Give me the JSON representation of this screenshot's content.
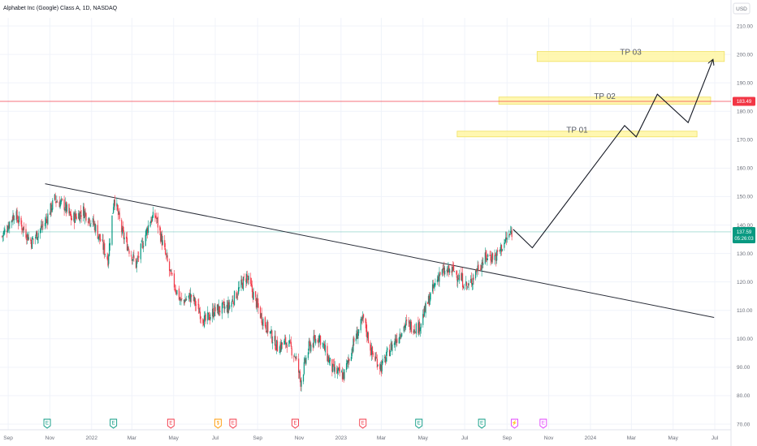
{
  "chart_data": {
    "type": "candlestick",
    "title": "Alphabet Inc (Google) Class A, 1D, NASDAQ",
    "currency": "USD",
    "ylim": [
      70,
      210
    ],
    "y_ticks": [
      "210.00",
      "200.00",
      "190.00",
      "180.00",
      "170.00",
      "160.00",
      "150.00",
      "140.00",
      "130.00",
      "120.00",
      "110.00",
      "100.00",
      "90.00",
      "80.00",
      "70.00"
    ],
    "x_range": [
      "2021-08-20",
      "2024-07-20"
    ],
    "x_ticks": [
      {
        "date": "2021-09-01",
        "label": "Sep"
      },
      {
        "date": "2021-11-01",
        "label": "Nov"
      },
      {
        "date": "2022-01-01",
        "label": "2022"
      },
      {
        "date": "2022-03-01",
        "label": "Mar"
      },
      {
        "date": "2022-05-01",
        "label": "May"
      },
      {
        "date": "2022-07-01",
        "label": "Jul"
      },
      {
        "date": "2022-09-01",
        "label": "Sep"
      },
      {
        "date": "2022-11-01",
        "label": "Nov"
      },
      {
        "date": "2023-01-01",
        "label": "2023"
      },
      {
        "date": "2023-03-01",
        "label": "Mar"
      },
      {
        "date": "2023-05-01",
        "label": "May"
      },
      {
        "date": "2023-07-01",
        "label": "Jul"
      },
      {
        "date": "2023-09-01",
        "label": "Sep"
      },
      {
        "date": "2023-11-01",
        "label": "Nov"
      },
      {
        "date": "2024-01-01",
        "label": "2024"
      },
      {
        "date": "2024-03-01",
        "label": "Mar"
      },
      {
        "date": "2024-05-01",
        "label": "May"
      },
      {
        "date": "2024-07-01",
        "label": "Jul"
      }
    ],
    "price_path": [
      [
        "2021-08-23",
        136
      ],
      [
        "2021-09-10",
        144
      ],
      [
        "2021-09-25",
        138
      ],
      [
        "2021-10-05",
        134
      ],
      [
        "2021-10-25",
        141
      ],
      [
        "2021-11-08",
        149
      ],
      [
        "2021-11-22",
        147
      ],
      [
        "2021-12-03",
        142
      ],
      [
        "2021-12-20",
        145
      ],
      [
        "2022-01-05",
        140
      ],
      [
        "2022-01-25",
        128
      ],
      [
        "2022-02-03",
        150
      ],
      [
        "2022-02-15",
        137
      ],
      [
        "2022-03-07",
        126
      ],
      [
        "2022-03-28",
        142
      ],
      [
        "2022-04-05",
        143
      ],
      [
        "2022-04-27",
        122
      ],
      [
        "2022-05-12",
        113
      ],
      [
        "2022-05-27",
        115
      ],
      [
        "2022-06-16",
        106
      ],
      [
        "2022-06-30",
        110
      ],
      [
        "2022-07-20",
        111
      ],
      [
        "2022-08-16",
        122
      ],
      [
        "2022-09-06",
        108
      ],
      [
        "2022-09-30",
        97
      ],
      [
        "2022-10-14",
        99
      ],
      [
        "2022-10-26",
        94
      ],
      [
        "2022-11-03",
        85
      ],
      [
        "2022-11-15",
        97
      ],
      [
        "2022-11-30",
        101
      ],
      [
        "2022-12-20",
        89
      ],
      [
        "2023-01-05",
        87
      ],
      [
        "2023-01-20",
        99
      ],
      [
        "2023-02-03",
        107
      ],
      [
        "2023-02-15",
        95
      ],
      [
        "2023-03-01",
        90
      ],
      [
        "2023-03-15",
        97
      ],
      [
        "2023-04-05",
        105
      ],
      [
        "2023-04-25",
        104
      ],
      [
        "2023-05-10",
        114
      ],
      [
        "2023-05-25",
        123
      ],
      [
        "2023-06-15",
        124
      ],
      [
        "2023-07-06",
        118
      ],
      [
        "2023-07-20",
        125
      ],
      [
        "2023-08-03",
        129
      ],
      [
        "2023-08-16",
        129
      ],
      [
        "2023-08-31",
        135
      ],
      [
        "2023-09-08",
        137.59
      ]
    ],
    "last_price": "137.59",
    "last_price_timer": "05:26:03",
    "alert_price": "183.49",
    "trendline": [
      [
        "2021-10-25",
        154.5
      ],
      [
        "2024-06-30",
        107.5
      ]
    ],
    "projection_path": [
      [
        "2023-09-10",
        138.5
      ],
      [
        "2023-10-08",
        132
      ],
      [
        "2024-02-20",
        175
      ],
      [
        "2024-03-08",
        171
      ],
      [
        "2024-04-08",
        186
      ],
      [
        "2024-05-23",
        176
      ],
      [
        "2024-06-28",
        198
      ]
    ],
    "target_zones": [
      {
        "label": "TP 01",
        "x0": "2023-06-20",
        "x1": "2024-06-05",
        "low": 171,
        "high": 173
      },
      {
        "label": "TP 02",
        "x0": "2023-08-20",
        "x1": "2024-06-25",
        "low": 182.5,
        "high": 185
      },
      {
        "label": "TP 03",
        "x0": "2023-10-15",
        "x1": "2024-07-15",
        "low": 197.5,
        "high": 201
      }
    ],
    "events": [
      {
        "date": "2021-10-28",
        "label": "E",
        "color": "#089981"
      },
      {
        "date": "2022-02-02",
        "label": "E",
        "color": "#089981"
      },
      {
        "date": "2022-04-27",
        "label": "E",
        "color": "#f23645"
      },
      {
        "date": "2022-07-05",
        "label": "$",
        "color": "#ff9800"
      },
      {
        "date": "2022-07-27",
        "label": "E",
        "color": "#f23645"
      },
      {
        "date": "2022-10-26",
        "label": "E",
        "color": "#f23645"
      },
      {
        "date": "2023-02-02",
        "label": "E",
        "color": "#f23645"
      },
      {
        "date": "2023-04-25",
        "label": "E",
        "color": "#089981"
      },
      {
        "date": "2023-07-26",
        "label": "E",
        "color": "#089981"
      },
      {
        "date": "2023-09-12",
        "label": "⚡",
        "color": "#e040fb"
      },
      {
        "date": "2023-10-24",
        "label": "E",
        "color": "#e040fb"
      }
    ]
  }
}
